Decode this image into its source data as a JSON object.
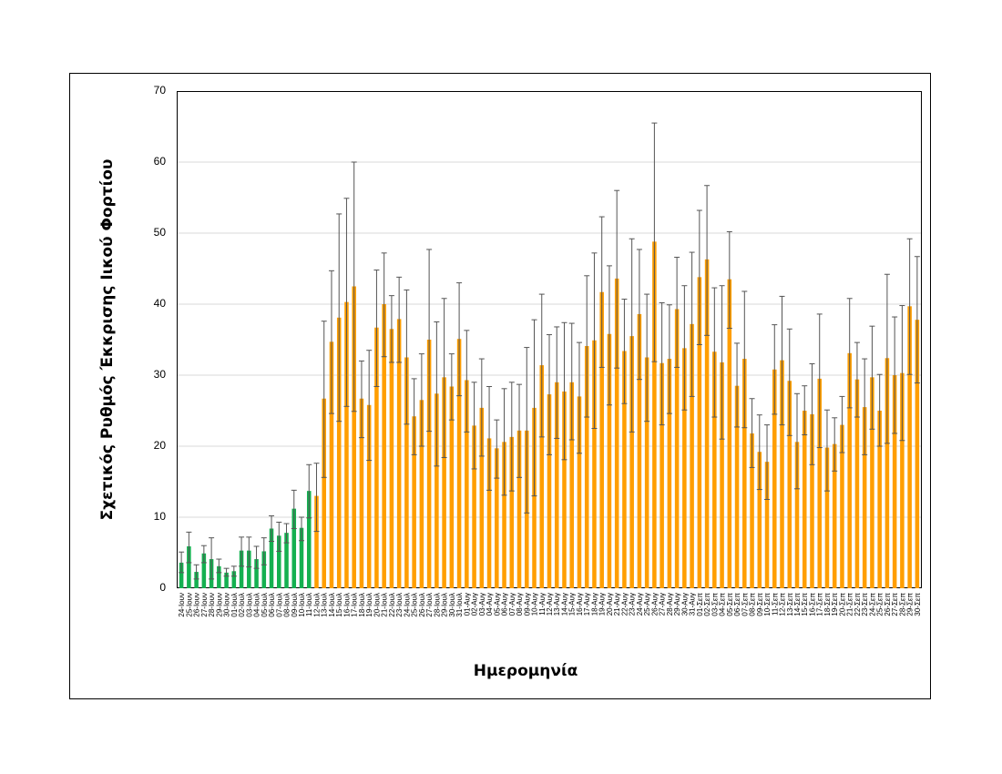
{
  "chart_data": {
    "type": "bar",
    "title": "",
    "xlabel": "Ημερομηνία",
    "ylabel": "Σχετικός Ρυθμός Έκκρισης Ιικού Φορτίου",
    "ylim": [
      0,
      70
    ],
    "yticks": [
      0,
      10,
      20,
      30,
      40,
      50,
      60,
      70
    ],
    "grid": true,
    "legend": null,
    "colors": {
      "green": "#14b050",
      "orange": "#ff9e00",
      "errorbar": "#555555",
      "grid": "#d9d9d9"
    },
    "green_count": 18,
    "categories": [
      "24-Ιουν",
      "25-Ιουν",
      "26-Ιουν",
      "27-Ιουν",
      "28-Ιουν",
      "29-Ιουν",
      "30-Ιουν",
      "01-Ιουλ",
      "02-Ιουλ",
      "03-Ιουλ",
      "04-Ιουλ",
      "05-Ιουλ",
      "06-Ιουλ",
      "07-Ιουλ",
      "08-Ιουλ",
      "09-Ιουλ",
      "10-Ιουλ",
      "11-Ιουλ",
      "12-Ιουλ",
      "13-Ιουλ",
      "14-Ιουλ",
      "15-Ιουλ",
      "16-Ιουλ",
      "17-Ιουλ",
      "18-Ιουλ",
      "19-Ιουλ",
      "20-Ιουλ",
      "21-Ιουλ",
      "22-Ιουλ",
      "23-Ιουλ",
      "24-Ιουλ",
      "25-Ιουλ",
      "26-Ιουλ",
      "27-Ιουλ",
      "28-Ιουλ",
      "29-Ιουλ",
      "30-Ιουλ",
      "31-Ιουλ",
      "01-Αυγ",
      "02-Αυγ",
      "03-Αυγ",
      "04-Αυγ",
      "05-Αυγ",
      "06-Αυγ",
      "07-Αυγ",
      "08-Αυγ",
      "09-Αυγ",
      "10-Αυγ",
      "11-Αυγ",
      "12-Αυγ",
      "13-Αυγ",
      "14-Αυγ",
      "15-Αυγ",
      "16-Αυγ",
      "17-Αυγ",
      "18-Αυγ",
      "19-Αυγ",
      "20-Αυγ",
      "21-Αυγ",
      "22-Αυγ",
      "23-Αυγ",
      "24-Αυγ",
      "25-Αυγ",
      "26-Αυγ",
      "27-Αυγ",
      "28-Αυγ",
      "29-Αυγ",
      "30-Αυγ",
      "31-Αυγ",
      "01-Σεπ",
      "02-Σεπ",
      "03-Σεπ",
      "04-Σεπ",
      "05-Σεπ",
      "06-Σεπ",
      "07-Σεπ",
      "08-Σεπ",
      "09-Σεπ",
      "10-Σεπ",
      "11-Σεπ",
      "12-Σεπ",
      "13-Σεπ",
      "14-Σεπ",
      "15-Σεπ",
      "16-Σεπ",
      "17-Σεπ",
      "18-Σεπ",
      "19-Σεπ",
      "20-Σεπ",
      "21-Σεπ",
      "22-Σεπ",
      "23-Σεπ",
      "24-Σεπ",
      "25-Σεπ",
      "26-Σεπ",
      "27-Σεπ",
      "28-Σεπ",
      "29-Σεπ",
      "30-Σεπ"
    ],
    "values": [
      3.6,
      5.9,
      2.3,
      4.9,
      4.1,
      3.1,
      2.2,
      2.4,
      5.3,
      5.3,
      4.1,
      5.2,
      8.4,
      7.4,
      7.8,
      11.2,
      8.5,
      13.7,
      13.0,
      26.7,
      34.7,
      38.1,
      40.3,
      42.5,
      26.7,
      25.8,
      36.7,
      40.0,
      36.5,
      37.9,
      32.5,
      24.2,
      26.5,
      35.0,
      27.4,
      29.7,
      28.4,
      35.1,
      29.3,
      22.9,
      25.4,
      21.1,
      19.7,
      20.6,
      21.3,
      22.2,
      22.2,
      25.4,
      31.4,
      27.3,
      29.0,
      27.7,
      29.0,
      27.0,
      34.1,
      34.9,
      41.7,
      35.8,
      43.6,
      33.4,
      35.5,
      38.6,
      32.5,
      48.8,
      31.7,
      32.3,
      39.3,
      33.8,
      37.2,
      43.8,
      46.3,
      33.3,
      31.8,
      43.5,
      28.5,
      32.3,
      21.8,
      19.2,
      17.8,
      30.8,
      32.1,
      29.2,
      20.6,
      25.0,
      24.5,
      29.5,
      19.8,
      20.3,
      23.0,
      33.1,
      29.4,
      25.5,
      29.7,
      25.0,
      32.4,
      30.0,
      30.3,
      39.7,
      37.8
    ],
    "error_upper": [
      5.1,
      7.9,
      3.3,
      6.0,
      7.1,
      4.1,
      2.8,
      3.1,
      7.2,
      7.2,
      5.9,
      7.1,
      10.2,
      9.3,
      9.1,
      13.8,
      10.0,
      17.4,
      17.6,
      37.6,
      44.7,
      52.7,
      54.9,
      60.0,
      32.0,
      33.5,
      44.8,
      47.2,
      41.2,
      43.8,
      42.0,
      29.5,
      33.0,
      47.7,
      37.5,
      40.8,
      33.0,
      43.0,
      36.3,
      29.0,
      32.3,
      28.4,
      23.7,
      28.1,
      29.0,
      28.7,
      33.9,
      37.8,
      41.4,
      35.7,
      36.8,
      37.4,
      37.3,
      34.6,
      44.0,
      47.2,
      52.3,
      45.4,
      56.0,
      40.7,
      49.2,
      47.7,
      41.4,
      65.5,
      40.2,
      39.9,
      46.6,
      42.6,
      47.3,
      53.2,
      56.7,
      42.3,
      42.6,
      50.2,
      34.5,
      41.8,
      26.7,
      24.4,
      23.0,
      37.1,
      41.1,
      36.5,
      27.4,
      28.5,
      31.6,
      38.6,
      25.1,
      24.0,
      27.0,
      40.8,
      34.6,
      32.3,
      36.9,
      30.1,
      44.2,
      38.2,
      39.8,
      49.2,
      46.7
    ],
    "error_lower": [
      2.2,
      3.6,
      1.3,
      3.6,
      1.3,
      2.2,
      1.7,
      1.7,
      3.1,
      3.0,
      2.8,
      3.3,
      6.6,
      5.2,
      6.4,
      8.4,
      6.7,
      9.9,
      8.0,
      15.6,
      24.6,
      23.5,
      25.6,
      24.9,
      21.2,
      18.0,
      28.4,
      32.6,
      31.8,
      31.8,
      23.1,
      18.8,
      20.0,
      22.1,
      17.2,
      18.4,
      23.7,
      27.1,
      22.0,
      16.8,
      18.6,
      13.8,
      15.5,
      13.1,
      13.7,
      15.6,
      10.6,
      13.0,
      21.3,
      18.8,
      21.1,
      18.1,
      20.9,
      19.0,
      24.1,
      22.5,
      31.1,
      25.8,
      31.0,
      26.0,
      22.0,
      29.4,
      23.5,
      31.9,
      23.0,
      24.6,
      31.1,
      25.1,
      27.0,
      34.3,
      35.6,
      24.1,
      21.0,
      36.6,
      22.7,
      22.6,
      17.0,
      13.9,
      12.5,
      24.5,
      23.0,
      21.5,
      14.0,
      21.6,
      17.4,
      19.8,
      13.7,
      16.5,
      19.1,
      25.4,
      24.1,
      18.8,
      22.4,
      20.0,
      20.4,
      21.8,
      20.8,
      30.1,
      28.9
    ]
  }
}
